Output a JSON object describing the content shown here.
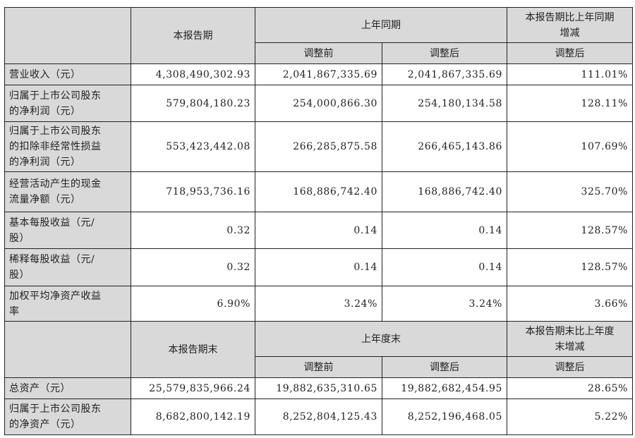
{
  "section1": {
    "header": {
      "current": "本报告期",
      "prior": "上年同期",
      "change": "本报告期比上年同期\n增减",
      "before": "调整前",
      "after": "调整后",
      "change_after": "调整后"
    },
    "rows": [
      {
        "label": "营业收入（元）",
        "current": "4,308,490,302.93",
        "before": "2,041,867,335.69",
        "after": "2,041,867,335.69",
        "change": "111.01%"
      },
      {
        "label": "归属于上市公司股东\n的净利润（元）",
        "current": "579,804,180.23",
        "before": "254,000,866.30",
        "after": "254,180,134.58",
        "change": "128.11%"
      },
      {
        "label": "归属于上市公司股东\n的扣除非经常性损益\n的净利润（元）",
        "current": "553,423,442.08",
        "before": "266,285,875.58",
        "after": "266,465,143.86",
        "change": "107.69%"
      },
      {
        "label": "经营活动产生的现金\n流量净额（元）",
        "current": "718,953,736.16",
        "before": "168,886,742.40",
        "after": "168,886,742.40",
        "change": "325.70%"
      },
      {
        "label": "基本每股收益（元/\n股）",
        "current": "0.32",
        "before": "0.14",
        "after": "0.14",
        "change": "128.57%"
      },
      {
        "label": "稀释每股收益（元/\n股）",
        "current": "0.32",
        "before": "0.14",
        "after": "0.14",
        "change": "128.57%"
      },
      {
        "label": "加权平均净资产收益\n率",
        "current": "6.90%",
        "before": "3.24%",
        "after": "3.24%",
        "change": "3.66%"
      }
    ]
  },
  "section2": {
    "header": {
      "current": "本报告期末",
      "prior": "上年度末",
      "change": "本报告期末比上年度\n末增减",
      "before": "调整前",
      "after": "调整后",
      "change_after": "调整后"
    },
    "rows": [
      {
        "label": "总资产（元）",
        "current": "25,579,835,966.24",
        "before": "19,882,635,310.65",
        "after": "19,882,682,454.95",
        "change": "28.65%"
      },
      {
        "label": "归属于上市公司股东\n的净资产（元）",
        "current": "8,682,800,142.19",
        "before": "8,252,804,125.43",
        "after": "8,252,196,468.05",
        "change": "5.22%"
      }
    ]
  }
}
